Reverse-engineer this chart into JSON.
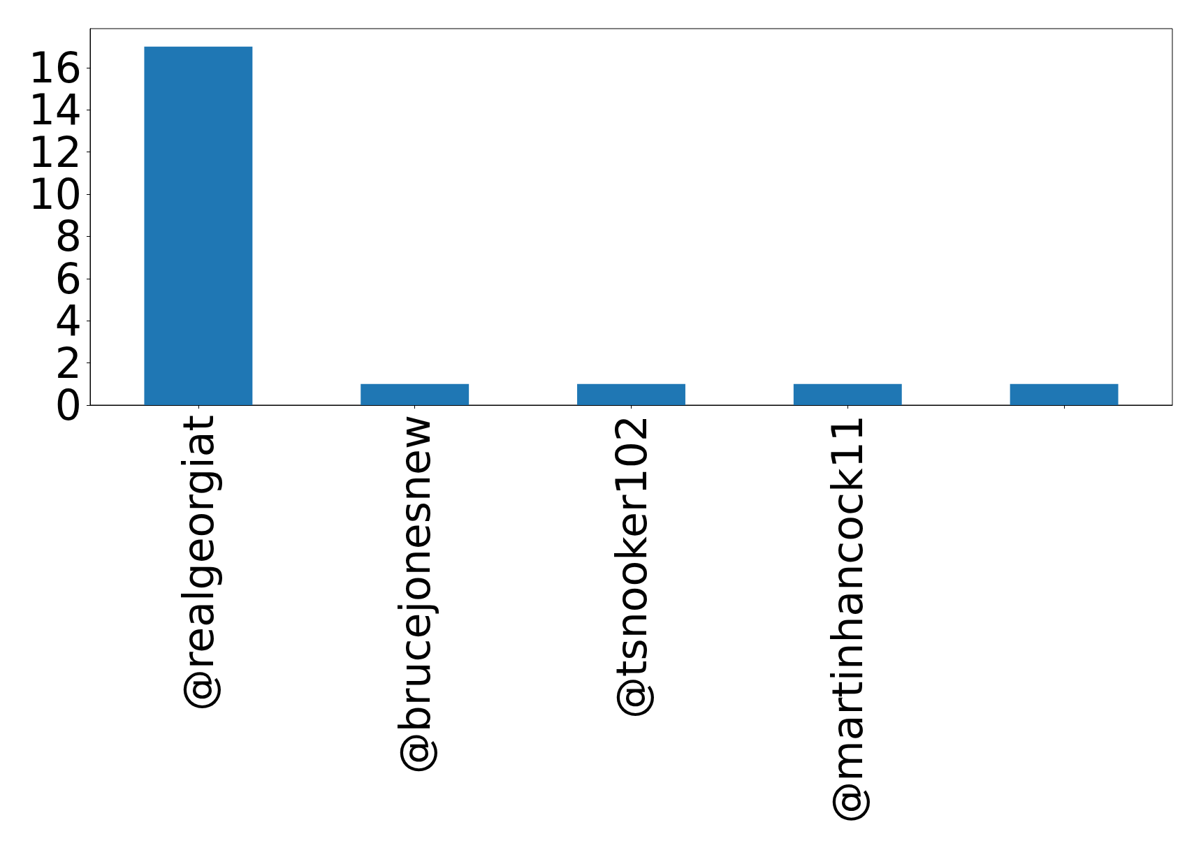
{
  "chart_data": {
    "type": "bar",
    "categories": [
      "@realgeorgiat",
      "@brucejonesnew",
      "@tsnooker102",
      "@martinhancock11",
      null
    ],
    "values": [
      17,
      1,
      1,
      1,
      1
    ],
    "color": "#1f77b4",
    "ylim": [
      0,
      17.85
    ],
    "yticks": [
      0,
      2,
      4,
      6,
      8,
      10,
      12,
      14,
      16
    ],
    "grid": false
  }
}
